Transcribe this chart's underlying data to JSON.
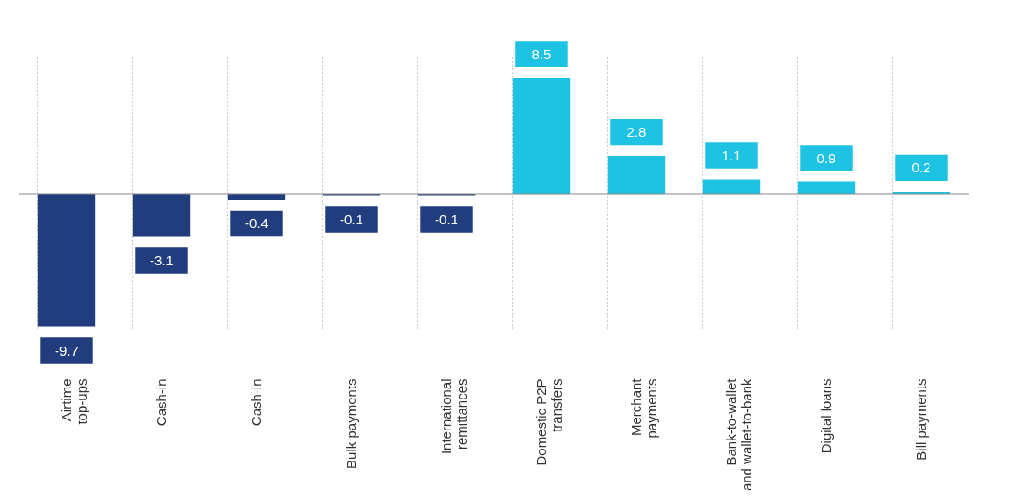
{
  "chart_data": {
    "type": "bar",
    "categories": [
      "Airtime\ntop-ups",
      "Cash-in",
      "Cash-in",
      "Bulk payments",
      "International\nremittances",
      "Domestic P2P\ntransfers",
      "Merchant\npayments",
      "Bank-to-wallet\nand wallet-to-bank",
      "Digital loans",
      "Bill payments"
    ],
    "values": [
      -9.7,
      -3.1,
      -0.4,
      -0.1,
      -0.1,
      8.5,
      2.8,
      1.1,
      0.9,
      0.2
    ],
    "colors": [
      "#213d7d",
      "#213d7d",
      "#213d7d",
      "#213d7d",
      "#213d7d",
      "#1ec2e2",
      "#1ec2e2",
      "#1ec2e2",
      "#1ec2e2",
      "#1ec2e2"
    ],
    "data_labels": true,
    "grid": "x",
    "ref_lines": [
      {
        "axis": "y",
        "value": 0,
        "color": "#888888"
      }
    ]
  }
}
